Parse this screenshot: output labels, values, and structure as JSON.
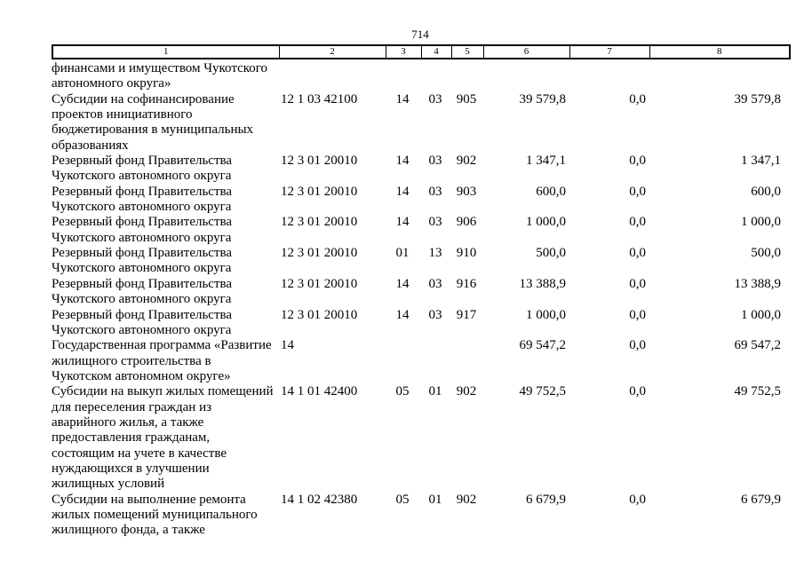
{
  "page": {
    "number": "714"
  },
  "table": {
    "column_headers": [
      "1",
      "2",
      "3",
      "4",
      "5",
      "6",
      "7",
      "8"
    ],
    "column_names": [
      "cell-col1-description",
      "cell-col2-code",
      "cell-col3",
      "cell-col4",
      "cell-col5",
      "cell-col6-amount",
      "cell-col7-amount",
      "cell-col8-amount"
    ],
    "rows": [
      {
        "cells": [
          "финансами и имуществом Чукотского\nавтономного округа»",
          "",
          "",
          "",
          "",
          "",
          "",
          ""
        ]
      },
      {
        "cells": [
          "Субсидии на софинансирование\nпроектов инициативного\nбюджетирования в муниципальных\nобразованиях",
          "12 1 03 42100",
          "14",
          "03",
          "905",
          "39 579,8",
          "0,0",
          "39 579,8"
        ]
      },
      {
        "cells": [
          "Резервный фонд Правительства\nЧукотского автономного округа",
          "12 3 01 20010",
          "14",
          "03",
          "902",
          "1 347,1",
          "0,0",
          "1 347,1"
        ]
      },
      {
        "cells": [
          "Резервный фонд Правительства\nЧукотского автономного округа",
          "12 3 01 20010",
          "14",
          "03",
          "903",
          "600,0",
          "0,0",
          "600,0"
        ]
      },
      {
        "cells": [
          "Резервный фонд Правительства\nЧукотского автономного округа",
          "12 3 01 20010",
          "14",
          "03",
          "906",
          "1 000,0",
          "0,0",
          "1 000,0"
        ]
      },
      {
        "cells": [
          "Резервный фонд Правительства\nЧукотского автономного округа",
          "12 3 01 20010",
          "01",
          "13",
          "910",
          "500,0",
          "0,0",
          "500,0"
        ]
      },
      {
        "cells": [
          "Резервный фонд Правительства\nЧукотского автономного округа",
          "12 3 01 20010",
          "14",
          "03",
          "916",
          "13 388,9",
          "0,0",
          "13 388,9"
        ]
      },
      {
        "cells": [
          "Резервный фонд Правительства\nЧукотского автономного округа",
          "12 3 01 20010",
          "14",
          "03",
          "917",
          "1 000,0",
          "0,0",
          "1 000,0"
        ]
      },
      {
        "cells": [
          "Государственная программа «Развитие\nжилищного строительства в\nЧукотском автономном округе»",
          "14",
          "",
          "",
          "",
          "69 547,2",
          "0,0",
          "69 547,2"
        ]
      },
      {
        "cells": [
          "Субсидии на выкуп жилых помещений\nдля переселения граждан из\nаварийного жилья, а также\nпредоставления гражданам,\nсостоящим на учете в качестве\nнуждающихся в улучшении\nжилищных условий",
          "14 1 01 42400",
          "05",
          "01",
          "902",
          "49 752,5",
          "0,0",
          "49 752,5"
        ]
      },
      {
        "cells": [
          "Субсидии на выполнение ремонта\nжилых помещений муниципального\nжилищного фонда, а также",
          "14 1 02 42380",
          "05",
          "01",
          "902",
          "6 679,9",
          "0,0",
          "6 679,9"
        ]
      }
    ]
  }
}
